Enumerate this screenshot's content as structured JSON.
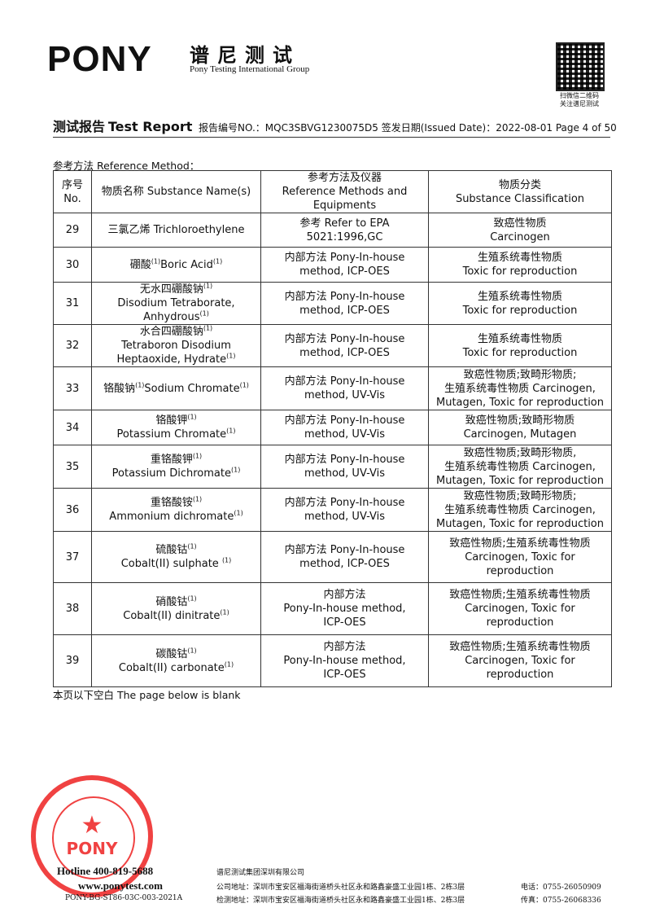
{
  "header": {
    "logo": "PONY",
    "brand_cn": "谱尼测试",
    "brand_en": "Pony Testing International Group",
    "qr_caption": [
      "扫微信二维码",
      "关注谱尼测试"
    ],
    "report_title_cn": "测试报告",
    "report_title_en": "Test Report",
    "report_no": "报告编号NO.：MQC3SBVG1230075D5",
    "issued_date": "签发日期(Issued Date)：2022-08-01",
    "page": "Page 4 of 50"
  },
  "section_label": "参考方法 Reference Method：",
  "table": {
    "header": [
      [
        "序号",
        "No."
      ],
      [
        "物质名称 Substance Name(s)"
      ],
      [
        "参考方法及仪器",
        "Reference Methods and",
        "Equipments"
      ],
      [
        "物质分类",
        "Substance Classification"
      ]
    ],
    "rows": [
      {
        "no": "29",
        "name": [
          [
            {
              "t": "三氯乙烯 Trichloroethylene"
            }
          ]
        ],
        "method": [
          "参考 Refer to EPA",
          "5021:1996,GC"
        ],
        "class": [
          "致癌性物质",
          "Carcinogen"
        ]
      },
      {
        "no": "30",
        "name": [
          [
            {
              "t": "硼酸"
            },
            {
              "sup": "(1)"
            },
            {
              "t": "Boric Acid"
            },
            {
              "sup": "(1)"
            }
          ]
        ],
        "method": [
          "内部方法 Pony-In-house",
          "method, ICP-OES"
        ],
        "class": [
          "生殖系统毒性物质",
          "Toxic for reproduction"
        ]
      },
      {
        "no": "31",
        "name": [
          [
            {
              "t": "无水四硼酸钠"
            },
            {
              "sup": "(1)"
            }
          ],
          [
            {
              "t": "Disodium Tetraborate,"
            }
          ],
          [
            {
              "t": "Anhydrous"
            },
            {
              "sup": "(1)"
            }
          ]
        ],
        "method": [
          "内部方法 Pony-In-house",
          "method, ICP-OES"
        ],
        "class": [
          "生殖系统毒性物质",
          "Toxic for reproduction"
        ]
      },
      {
        "no": "32",
        "name": [
          [
            {
              "t": "水合四硼酸钠"
            },
            {
              "sup": "(1)"
            }
          ],
          [
            {
              "t": "Tetraboron Disodium"
            }
          ],
          [
            {
              "t": "Heptaoxide, Hydrate"
            },
            {
              "sup": "(1)"
            }
          ]
        ],
        "method": [
          "内部方法 Pony-In-house",
          "method, ICP-OES"
        ],
        "class": [
          "生殖系统毒性物质",
          "Toxic for reproduction"
        ]
      },
      {
        "no": "33",
        "name": [
          [
            {
              "t": "铬酸钠"
            },
            {
              "sup": "(1)"
            },
            {
              "t": "Sodium Chromate"
            },
            {
              "sup": "(1)"
            }
          ]
        ],
        "method": [
          "内部方法 Pony-In-house",
          "method, UV-Vis"
        ],
        "class": [
          "致癌性物质;致畸形物质;",
          "生殖系统毒性物质 Carcinogen,",
          "Mutagen, Toxic for reproduction"
        ]
      },
      {
        "no": "34",
        "name": [
          [
            {
              "t": "铬酸钾"
            },
            {
              "sup": "(1)"
            }
          ],
          [
            {
              "t": "Potassium Chromate"
            },
            {
              "sup": "(1)"
            }
          ]
        ],
        "method": [
          "内部方法 Pony-In-house",
          "method, UV-Vis"
        ],
        "class": [
          "致癌性物质;致畸形物质",
          "Carcinogen, Mutagen"
        ]
      },
      {
        "no": "35",
        "name": [
          [
            {
              "t": "重铬酸钾"
            },
            {
              "sup": "(1)"
            }
          ],
          [
            {
              "t": "Potassium Dichromate"
            },
            {
              "sup": "(1)"
            }
          ]
        ],
        "method": [
          "内部方法 Pony-In-house",
          "method, UV-Vis"
        ],
        "class": [
          "致癌性物质;致畸形物质,",
          "生殖系统毒性物质 Carcinogen,",
          "Mutagen, Toxic for reproduction"
        ]
      },
      {
        "no": "36",
        "name": [
          [
            {
              "t": "重铬酸铵"
            },
            {
              "sup": "(1)"
            }
          ],
          [
            {
              "t": "Ammonium dichromate"
            },
            {
              "sup": "(1)"
            }
          ]
        ],
        "method": [
          "内部方法 Pony-In-house",
          "method, UV-Vis"
        ],
        "class": [
          "致癌性物质;致畸形物质;",
          "生殖系统毒性物质 Carcinogen,",
          "Mutagen, Toxic for reproduction"
        ]
      },
      {
        "no": "37",
        "name": [
          [
            {
              "t": "硫酸钴"
            },
            {
              "sup": "(1)"
            }
          ],
          [
            {
              "t": "Cobalt(II) sulphate "
            },
            {
              "sup": "(1)"
            }
          ]
        ],
        "method": [
          "内部方法 Pony-In-house",
          "method, ICP-OES"
        ],
        "class": [
          "致癌性物质;生殖系统毒性物质",
          "Carcinogen, Toxic for",
          "reproduction"
        ]
      },
      {
        "no": "38",
        "name": [
          [
            {
              "t": "硝酸钴"
            },
            {
              "sup": "(1)"
            }
          ],
          [
            {
              "t": "Cobalt(II) dinitrate"
            },
            {
              "sup": "(1)"
            }
          ]
        ],
        "method": [
          "内部方法",
          "Pony-In-house method,",
          "ICP-OES"
        ],
        "class": [
          "致癌性物质;生殖系统毒性物质",
          "Carcinogen, Toxic for",
          "reproduction"
        ]
      },
      {
        "no": "39",
        "name": [
          [
            {
              "t": "碳酸钴"
            },
            {
              "sup": "(1)"
            }
          ],
          [
            {
              "t": "Cobalt(II) carbonate"
            },
            {
              "sup": "(1)"
            }
          ]
        ],
        "method": [
          "内部方法",
          "Pony-In-house method,",
          "ICP-OES"
        ],
        "class": [
          "致癌性物质;生殖系统毒性物质",
          "Carcinogen, Toxic for",
          "reproduction"
        ]
      }
    ]
  },
  "blank_note": "本页以下空白 The page below is blank",
  "footer": {
    "stamp": "PONY",
    "hotline": "Hotline 400-819-5688",
    "website": "www.ponytest.com",
    "form_no": "PONY-BG-ST86-03C-003-2021A",
    "company": "谱尼测试集团深圳有限公司",
    "company_address": "公司地址：深圳市宝安区福海街道桥头社区永和路鑫豪盛工业园1栋、2栋3层",
    "phone": "电话：0755-26050909",
    "test_address": "检测地址：深圳市宝安区福海街道桥头社区永和路鑫豪盛工业园1栋、2栋3层",
    "fax": "传真：0755-26068336"
  }
}
